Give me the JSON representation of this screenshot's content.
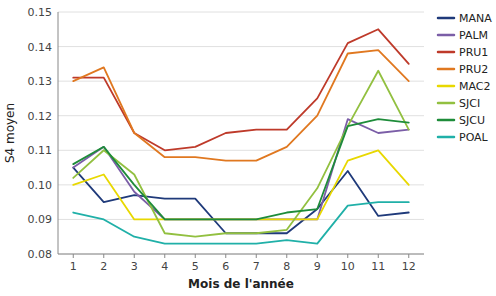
{
  "chart_data": {
    "type": "line",
    "xlabel": "Mois de l'année",
    "ylabel": "S4 moyen",
    "x": [
      1,
      2,
      3,
      4,
      5,
      6,
      7,
      8,
      9,
      10,
      11,
      12
    ],
    "xlim": [
      0.5,
      12.5
    ],
    "xticks": [
      1,
      2,
      3,
      4,
      5,
      6,
      7,
      8,
      9,
      10,
      11,
      12
    ],
    "ylim": [
      0.08,
      0.15
    ],
    "yticks": [
      0.08,
      0.09,
      {
        "value": 0.1,
        "label": "0.10"
      },
      0.11,
      0.12,
      0.13,
      0.14,
      0.15
    ],
    "grid": true,
    "legend": "right",
    "series": [
      {
        "name": "MANA",
        "color": "#1f3a7a",
        "values": [
          0.105,
          0.095,
          0.097,
          0.096,
          0.096,
          0.086,
          0.086,
          0.086,
          0.093,
          0.104,
          0.091,
          0.092
        ]
      },
      {
        "name": "PALM",
        "color": "#7b5ea7",
        "values": [
          0.105,
          0.111,
          0.098,
          0.09,
          0.09,
          0.09,
          0.09,
          0.09,
          0.09,
          0.119,
          0.115,
          0.116
        ]
      },
      {
        "name": "PRU1",
        "color": "#be3a2a",
        "values": [
          0.131,
          0.131,
          0.115,
          0.11,
          0.111,
          0.115,
          0.116,
          0.116,
          0.125,
          0.141,
          0.145,
          0.135
        ]
      },
      {
        "name": "PRU2",
        "color": "#e07820",
        "values": [
          0.13,
          0.134,
          0.115,
          0.108,
          0.108,
          0.107,
          0.107,
          0.111,
          0.12,
          0.138,
          0.139,
          0.13
        ]
      },
      {
        "name": "MAC2",
        "color": "#e8d800",
        "values": [
          0.1,
          0.103,
          0.09,
          0.09,
          0.09,
          0.09,
          0.09,
          0.09,
          0.09,
          0.107,
          0.11,
          0.1
        ]
      },
      {
        "name": "SJCI",
        "color": "#92c040",
        "values": [
          0.102,
          0.11,
          0.103,
          0.086,
          0.085,
          0.086,
          0.086,
          0.087,
          0.099,
          0.117,
          0.133,
          0.116
        ]
      },
      {
        "name": "SJCU",
        "color": "#1e8c3a",
        "values": [
          0.106,
          0.111,
          0.1,
          0.09,
          0.09,
          0.09,
          0.09,
          0.092,
          0.093,
          0.117,
          0.119,
          0.118
        ]
      },
      {
        "name": "POAL",
        "color": "#20b0a8",
        "values": [
          0.092,
          0.09,
          0.085,
          0.083,
          0.083,
          0.083,
          0.083,
          0.084,
          0.083,
          0.094,
          0.095,
          0.095
        ]
      }
    ]
  }
}
